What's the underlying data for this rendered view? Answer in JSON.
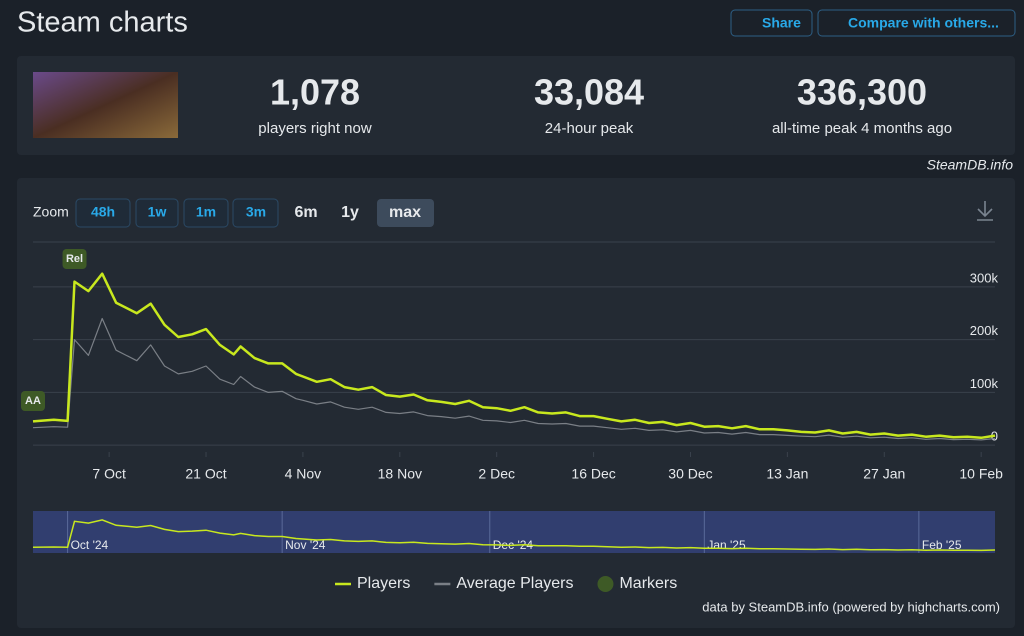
{
  "header": {
    "title": "Steam charts",
    "share": "Share",
    "compare": "Compare with others..."
  },
  "stats": [
    {
      "value": "1,078",
      "label": "players right now"
    },
    {
      "value": "33,084",
      "label": "24-hour peak"
    },
    {
      "value": "336,300",
      "label": "all-time peak 4 months ago"
    }
  ],
  "source": "SteamDB.info",
  "zoom": {
    "label": "Zoom",
    "options": [
      "48h",
      "1w",
      "1m",
      "3m",
      "6m",
      "1y",
      "max"
    ]
  },
  "chart_data": {
    "type": "line",
    "x": [
      -11,
      -8,
      -6,
      -5,
      -3,
      -1,
      1,
      4,
      6,
      8,
      10,
      12,
      14,
      16,
      18,
      19,
      21,
      23,
      25,
      27,
      28,
      30,
      32,
      34,
      36,
      38,
      40,
      42,
      44,
      46,
      48,
      50,
      52,
      54,
      56,
      58,
      60,
      62,
      64,
      66,
      68,
      70,
      72,
      74,
      76,
      78,
      80,
      82,
      84,
      86,
      88,
      90,
      92,
      94,
      96,
      98,
      100,
      102,
      104,
      106,
      108,
      110,
      112,
      114,
      116,
      118,
      120,
      122,
      124,
      126,
      128
    ],
    "series": [
      {
        "name": "Players",
        "color": "#c8e81e",
        "values": [
          45000,
          48000,
          46000,
          310000,
          292000,
          325000,
          270000,
          250000,
          268000,
          228000,
          205000,
          210000,
          220000,
          190000,
          172000,
          187000,
          165000,
          155000,
          155000,
          135000,
          130000,
          120000,
          125000,
          110000,
          105000,
          110000,
          95000,
          92000,
          96000,
          85000,
          82000,
          78000,
          84000,
          72000,
          70000,
          65000,
          72000,
          62000,
          60000,
          62000,
          55000,
          55000,
          50000,
          45000,
          48000,
          42000,
          44000,
          38000,
          42000,
          35000,
          36000,
          32000,
          36000,
          30000,
          30000,
          28000,
          25000,
          24000,
          28000,
          22000,
          25000,
          20000,
          22000,
          18000,
          20000,
          16000,
          18000,
          15000,
          16000,
          14000,
          18000
        ]
      },
      {
        "name": "Average Players",
        "color": "#7a7f86",
        "values": [
          33000,
          35000,
          34000,
          200000,
          170000,
          240000,
          180000,
          160000,
          190000,
          150000,
          135000,
          140000,
          150000,
          125000,
          115000,
          130000,
          110000,
          100000,
          102000,
          88000,
          85000,
          78000,
          82000,
          72000,
          68000,
          72000,
          62000,
          60000,
          63000,
          56000,
          54000,
          51000,
          55000,
          47000,
          46000,
          43000,
          47000,
          41000,
          40000,
          41000,
          36000,
          36000,
          33000,
          30000,
          32000,
          28000,
          29000,
          25000,
          28000,
          23000,
          24000,
          21000,
          24000,
          20000,
          20000,
          18500,
          17000,
          16000,
          19000,
          15000,
          17000,
          14000,
          15000,
          12500,
          14000,
          11000,
          12500,
          10500,
          11000,
          10000,
          12500
        ]
      }
    ],
    "xlim": [
      -11,
      128
    ],
    "xticks": [
      {
        "value": 0,
        "label": "7 Oct"
      },
      {
        "value": 14,
        "label": "21 Oct"
      },
      {
        "value": 28,
        "label": "4 Nov"
      },
      {
        "value": 42,
        "label": "18 Nov"
      },
      {
        "value": 56,
        "label": "2 Dec"
      },
      {
        "value": 70,
        "label": "16 Dec"
      },
      {
        "value": 84,
        "label": "30 Dec"
      },
      {
        "value": 98,
        "label": "13 Jan"
      },
      {
        "value": 112,
        "label": "27 Jan"
      },
      {
        "value": 126,
        "label": "10 Feb"
      }
    ],
    "ylim": [
      -13000,
      385000
    ],
    "yticks": [
      0,
      {
        "value": 100000,
        "label": "100k"
      },
      {
        "value": 200000,
        "label": "200k"
      },
      {
        "value": 300000,
        "label": "300k"
      }
    ],
    "grid": true,
    "markers_name": "Markers",
    "markers": [
      {
        "label": "AA",
        "x": -11
      },
      {
        "label": "Rel",
        "x": -5
      }
    ],
    "marker_color": "#3e5a26"
  },
  "navigator": {
    "xticks": [
      {
        "value": -6,
        "label": "Oct '24"
      },
      {
        "value": 25,
        "label": "Nov '24"
      },
      {
        "value": 55,
        "label": "Dec '24"
      },
      {
        "value": 86,
        "label": "Jan '25"
      },
      {
        "value": 117,
        "label": "Feb '25"
      }
    ]
  },
  "credits": "data by SteamDB.info (powered by highcharts.com)"
}
